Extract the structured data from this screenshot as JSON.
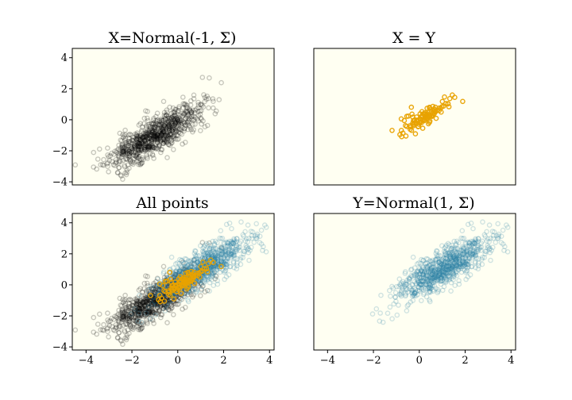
{
  "chart_data": [
    {
      "type": "scatter",
      "title": "X=Normal(-1, Σ)",
      "xlim": [
        -4.6,
        4.2
      ],
      "ylim": [
        -4.2,
        4.6
      ],
      "xticks": [],
      "yticks": [
        -4,
        -2,
        0,
        2,
        4
      ],
      "series": [
        {
          "kind": "cloud",
          "color": "#000000",
          "alpha": 0.22,
          "n": 800,
          "center": [
            -1,
            -1
          ],
          "rho": 0.8
        }
      ]
    },
    {
      "type": "scatter",
      "title": "X = Y",
      "xlim": [
        -4.6,
        4.2
      ],
      "ylim": [
        -4.2,
        4.6
      ],
      "xticks": [],
      "yticks": [],
      "series": [
        {
          "kind": "cloud",
          "color": "#e8a200",
          "alpha": 0.95,
          "n": 100,
          "center": [
            0.3,
            0.3
          ],
          "rho": 0.8,
          "scale": 0.55
        }
      ]
    },
    {
      "type": "scatter",
      "title": "All points",
      "xlim": [
        -4.6,
        4.2
      ],
      "ylim": [
        -4.2,
        4.6
      ],
      "xticks": [
        -4,
        -2,
        0,
        2,
        4
      ],
      "yticks": [
        -4,
        -2,
        0,
        2,
        4
      ],
      "series": [
        {
          "kind": "cloud",
          "color": "#000000",
          "alpha": 0.22,
          "n": 800,
          "center": [
            -1,
            -1
          ],
          "rho": 0.8
        },
        {
          "kind": "cloud",
          "color": "#2a7fa5",
          "alpha": 0.22,
          "n": 800,
          "center": [
            1,
            1
          ],
          "rho": 0.8
        },
        {
          "kind": "cloud",
          "color": "#e8a200",
          "alpha": 0.95,
          "n": 100,
          "center": [
            0.3,
            0.3
          ],
          "rho": 0.8,
          "scale": 0.55
        }
      ]
    },
    {
      "type": "scatter",
      "title": "Y=Normal(1, Σ)",
      "xlim": [
        -4.6,
        4.2
      ],
      "ylim": [
        -4.2,
        4.6
      ],
      "xticks": [
        -4,
        -2,
        0,
        2,
        4
      ],
      "yticks": [],
      "series": [
        {
          "kind": "cloud",
          "color": "#2a7fa5",
          "alpha": 0.22,
          "n": 800,
          "center": [
            1,
            1
          ],
          "rho": 0.8
        }
      ]
    }
  ]
}
